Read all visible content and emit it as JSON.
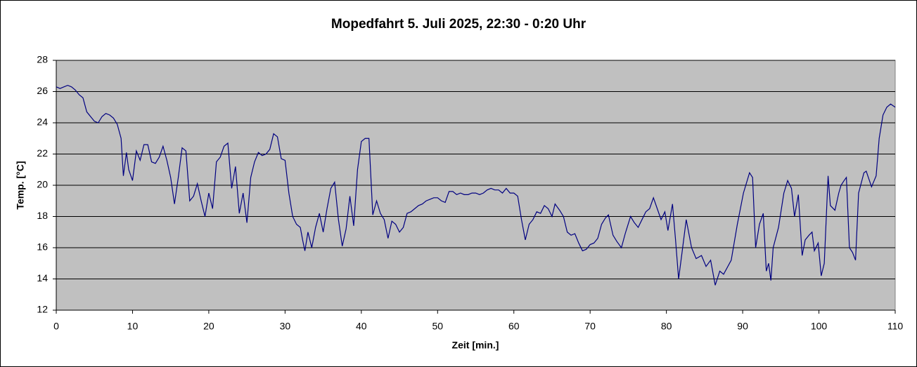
{
  "chart_data": {
    "type": "line",
    "title": "Mopedfahrt 5. Juli 2025, 22:30 - 0:20 Uhr",
    "xlabel": "Zeit [min.]",
    "ylabel": "Temp. [°C]",
    "color": "#000080",
    "grid": true,
    "xlim": [
      0,
      110
    ],
    "xticks": [
      0,
      10,
      20,
      30,
      40,
      50,
      60,
      70,
      80,
      90,
      100,
      110
    ],
    "ylim": [
      12,
      28
    ],
    "yticks": [
      12,
      14,
      16,
      18,
      20,
      22,
      24,
      26,
      28
    ],
    "x": [
      0,
      0.5,
      1,
      1.5,
      2,
      2.5,
      3,
      3.5,
      4,
      4.5,
      5,
      5.5,
      6,
      6.5,
      7,
      7.5,
      8,
      8.5,
      8.8,
      9.2,
      9.5,
      10,
      10.5,
      11,
      11.5,
      12,
      12.5,
      13,
      13.5,
      14,
      14.5,
      15,
      15.5,
      16,
      16.5,
      17,
      17.5,
      18,
      18.5,
      19,
      19.5,
      20,
      20.5,
      21,
      21.5,
      22,
      22.5,
      23,
      23.5,
      24,
      24.5,
      25,
      25.5,
      26,
      26.5,
      27,
      27.5,
      28,
      28.5,
      29,
      29.5,
      30,
      30.5,
      31,
      31.5,
      32,
      32.3,
      32.6,
      33,
      33.5,
      34,
      34.5,
      35,
      35.5,
      36,
      36.5,
      37,
      37.5,
      38,
      38.5,
      39,
      39.5,
      40,
      40.5,
      41,
      41.5,
      42,
      42.5,
      43,
      43.5,
      44,
      44.5,
      45,
      45.5,
      46,
      46.5,
      47,
      47.5,
      48,
      48.5,
      49,
      49.5,
      50,
      50.5,
      51,
      51.5,
      52,
      52.5,
      53,
      53.5,
      54,
      54.5,
      55,
      55.5,
      56,
      56.5,
      57,
      57.5,
      58,
      58.5,
      59,
      59.5,
      60,
      60.5,
      61,
      61.5,
      62,
      62.5,
      63,
      63.5,
      64,
      64.5,
      65,
      65.4,
      66,
      66.5,
      67,
      67.5,
      68,
      68.5,
      69,
      69.5,
      70,
      70.5,
      71,
      71.5,
      72,
      72.4,
      73,
      73.5,
      74.1,
      74.6,
      75.3,
      75.8,
      76.3,
      76.8,
      77.3,
      77.8,
      78.3,
      78.8,
      79.3,
      79.8,
      80.2,
      80.8,
      81.2,
      81.6,
      82,
      82.6,
      83.3,
      83.9,
      84.6,
      85.2,
      85.8,
      86.4,
      87,
      87.5,
      88.5,
      89.3,
      90.1,
      90.9,
      91.3,
      91.7,
      92.2,
      92.7,
      93.1,
      93.4,
      93.7,
      94,
      94.7,
      95.4,
      95.9,
      96.4,
      96.8,
      97.3,
      97.8,
      98.2,
      98.7,
      99.1,
      99.4,
      99.9,
      100.3,
      100.7,
      101.2,
      101.5,
      102.1,
      102.6,
      102.9,
      103.3,
      103.6,
      104,
      104.4,
      104.8,
      105.2,
      105.9,
      106.2,
      106.9,
      107.5,
      107.9,
      108.4,
      108.9,
      109.4,
      110
    ],
    "values": [
      26.3,
      26.2,
      26.3,
      26.4,
      26.3,
      26.1,
      25.8,
      25.6,
      24.7,
      24.4,
      24.1,
      24.0,
      24.4,
      24.6,
      24.5,
      24.3,
      23.9,
      23.0,
      20.6,
      22.1,
      21.0,
      20.3,
      22.2,
      21.6,
      22.6,
      22.6,
      21.5,
      21.4,
      21.8,
      22.5,
      21.6,
      20.5,
      18.8,
      20.5,
      22.4,
      22.2,
      19.0,
      19.3,
      20.1,
      19.0,
      18.0,
      19.5,
      18.5,
      21.5,
      21.8,
      22.5,
      22.7,
      19.8,
      21.2,
      18.2,
      19.5,
      17.6,
      20.5,
      21.5,
      22.1,
      21.9,
      22.0,
      22.3,
      23.3,
      23.1,
      21.7,
      21.6,
      19.5,
      18.0,
      17.5,
      17.3,
      16.5,
      15.8,
      17.0,
      16.0,
      17.3,
      18.2,
      17.0,
      18.5,
      19.8,
      20.2,
      17.8,
      16.1,
      17.2,
      19.3,
      17.4,
      21.0,
      22.8,
      23.0,
      23.0,
      18.1,
      19.0,
      18.2,
      17.8,
      16.6,
      17.7,
      17.5,
      17.0,
      17.3,
      18.2,
      18.3,
      18.5,
      18.7,
      18.8,
      19.0,
      19.1,
      19.2,
      19.2,
      19.0,
      18.9,
      19.6,
      19.6,
      19.4,
      19.5,
      19.4,
      19.4,
      19.5,
      19.5,
      19.4,
      19.5,
      19.7,
      19.8,
      19.7,
      19.7,
      19.5,
      19.8,
      19.5,
      19.5,
      19.3,
      17.8,
      16.5,
      17.5,
      17.8,
      18.3,
      18.2,
      18.7,
      18.5,
      18.0,
      18.8,
      18.4,
      18.0,
      17.0,
      16.8,
      16.9,
      16.3,
      15.8,
      15.9,
      16.2,
      16.3,
      16.6,
      17.5,
      17.9,
      18.1,
      16.8,
      16.4,
      16.0,
      16.9,
      18.0,
      17.6,
      17.3,
      17.8,
      18.3,
      18.5,
      19.2,
      18.5,
      17.8,
      18.3,
      17.1,
      18.8,
      16.5,
      14.0,
      15.5,
      17.8,
      16.0,
      15.3,
      15.5,
      14.8,
      15.2,
      13.6,
      14.5,
      14.3,
      15.2,
      17.5,
      19.5,
      20.8,
      20.5,
      16.0,
      17.5,
      18.2,
      14.5,
      15.0,
      13.9,
      16.0,
      17.3,
      19.5,
      20.3,
      19.8,
      18.0,
      19.4,
      15.5,
      16.5,
      16.8,
      17.0,
      15.8,
      16.3,
      14.2,
      15.0,
      20.6,
      18.7,
      18.4,
      19.5,
      20.0,
      20.3,
      20.5,
      16.0,
      15.7,
      15.2,
      19.5,
      20.8,
      20.9,
      19.9,
      20.6,
      23.0,
      24.5,
      25.0,
      25.2,
      25.0
    ]
  }
}
